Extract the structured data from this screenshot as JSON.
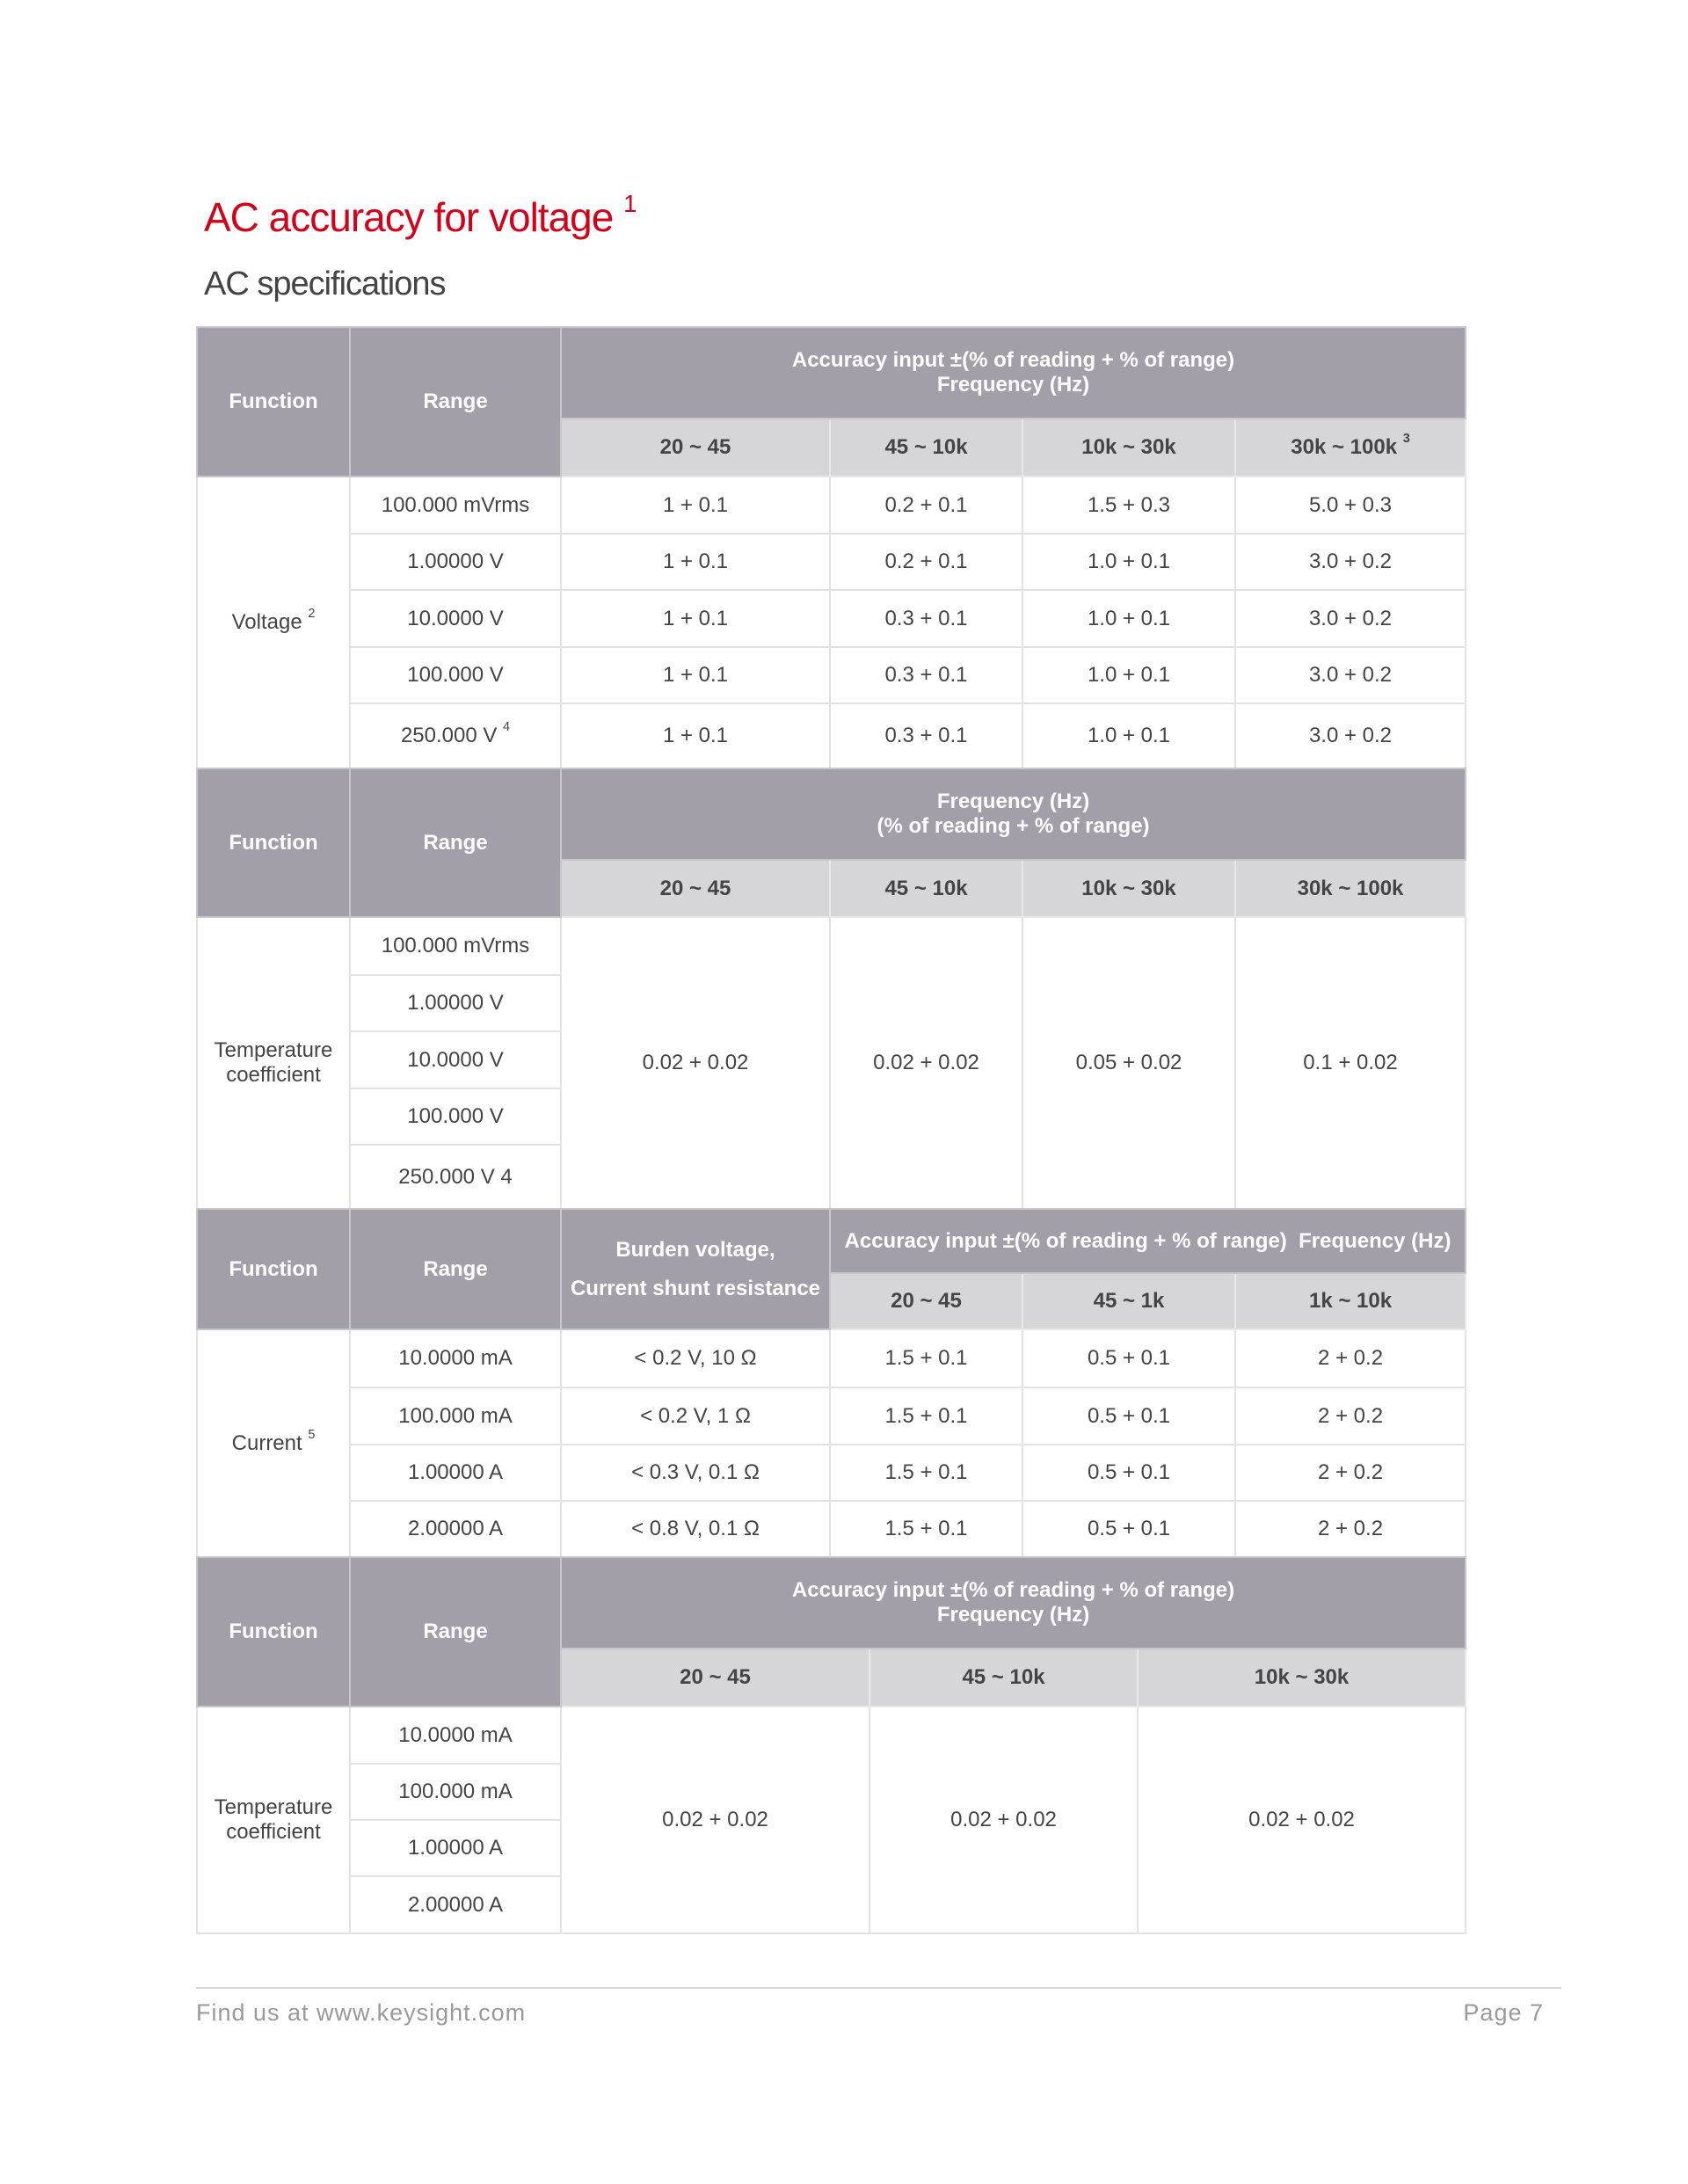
{
  "title": "AC accuracy for voltage",
  "title_sup": "1",
  "subtitle": "AC specifications",
  "t1": {
    "function": "Function",
    "range": "Range",
    "header": [
      "Accuracy input ±(% of reading + % of range)",
      "Frequency (Hz)"
    ],
    "cols": [
      "20 ~ 45",
      "45 ~ 10k",
      "10k ~ 30k",
      "30k ~ 100k"
    ],
    "col4_sup": "3",
    "func_label": "Voltage",
    "func_sup": "2",
    "rows": [
      [
        "100.000 mVrms",
        "1 + 0.1",
        "0.2 + 0.1",
        "1.5 + 0.3",
        "5.0 + 0.3"
      ],
      [
        "1.00000 V",
        "1 + 0.1",
        "0.2 + 0.1",
        "1.0 + 0.1",
        "3.0 + 0.2"
      ],
      [
        "10.0000 V",
        "1 + 0.1",
        "0.3 + 0.1",
        "1.0 + 0.1",
        "3.0 + 0.2"
      ],
      [
        "100.000 V",
        "1 + 0.1",
        "0.3 + 0.1",
        "1.0 + 0.1",
        "3.0 + 0.2"
      ],
      [
        "250.000 V",
        "1 + 0.1",
        "0.3 + 0.1",
        "1.0 + 0.1",
        "3.0 + 0.2"
      ]
    ],
    "last_range_sup": "4"
  },
  "t2": {
    "function": "Function",
    "range": "Range",
    "header": [
      "Frequency (Hz)",
      "(% of reading + % of range)"
    ],
    "cols": [
      "20 ~ 45",
      "45 ~ 10k",
      "10k ~ 30k",
      "30k ~ 100k"
    ],
    "func_label": [
      "Temperature",
      "coefficient"
    ],
    "ranges": [
      "100.000 mVrms",
      "1.00000 V",
      "10.0000 V",
      "100.000 V",
      "250.000 V 4"
    ],
    "values": [
      "0.02 + 0.02",
      "0.02 + 0.02",
      "0.05 + 0.02",
      "0.1 + 0.02"
    ]
  },
  "t3": {
    "function": "Function",
    "range": "Range",
    "burden": [
      "Burden voltage,",
      "Current shunt resistance"
    ],
    "header": "Accuracy input ±(% of reading + % of range)  Frequency (Hz)",
    "cols": [
      "20 ~ 45",
      "45 ~ 1k",
      "1k ~ 10k"
    ],
    "func_label": "Current",
    "func_sup": "5",
    "rows": [
      [
        "10.0000 mA",
        "< 0.2 V, 10 Ω",
        "1.5 + 0.1",
        "0.5 + 0.1",
        "2 + 0.2"
      ],
      [
        "100.000 mA",
        "< 0.2 V, 1 Ω",
        "1.5 + 0.1",
        "0.5 + 0.1",
        "2 + 0.2"
      ],
      [
        "1.00000 A",
        "< 0.3 V, 0.1 Ω",
        "1.5 + 0.1",
        "0.5 + 0.1",
        "2 + 0.2"
      ],
      [
        "2.00000 A",
        "< 0.8 V, 0.1 Ω",
        "1.5 + 0.1",
        "0.5 + 0.1",
        "2 + 0.2"
      ]
    ]
  },
  "t4": {
    "function": "Function",
    "range": "Range",
    "header": [
      "Accuracy input ±(% of reading + % of range)",
      "Frequency (Hz)"
    ],
    "cols": [
      "20 ~ 45",
      "45 ~ 10k",
      "10k ~ 30k"
    ],
    "func_label": [
      "Temperature",
      "coefficient"
    ],
    "ranges": [
      "10.0000 mA",
      "100.000 mA",
      "1.00000 A",
      "2.00000 A"
    ],
    "values": [
      "0.02 + 0.02",
      "0.02 + 0.02",
      "0.02 + 0.02"
    ]
  },
  "footer": {
    "link": "Find us at www.keysight.com",
    "page": "Page 7"
  },
  "colors": {
    "title": "#d0021b",
    "header_dark": "#a39fa8",
    "header_light": "#d6d6d9"
  }
}
